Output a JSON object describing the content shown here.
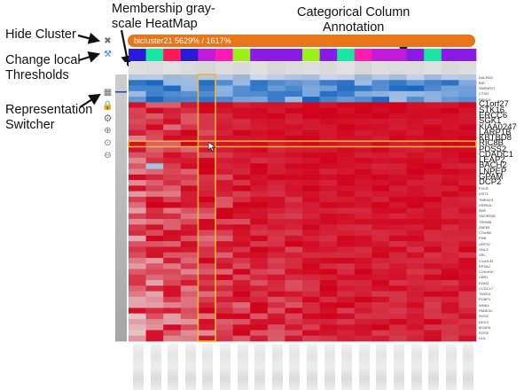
{
  "annotations": {
    "hide_cluster": "Hide Cluster",
    "change_thresholds_line1": "Change local",
    "change_thresholds_line2": "Thresholds",
    "representation_line1": "Representation",
    "representation_line2": "Switcher",
    "membership_line1": "Membership gray-",
    "membership_line2": "scale HeatMap",
    "categorical_line1": "Categorical Column",
    "categorical_line2": "Annotation"
  },
  "bicluster": {
    "label": "bicluster21 5629% / 1617%",
    "color": "#e8751a"
  },
  "toolbar_icons": [
    "close-icon",
    "threshold-icon",
    "table-icon",
    "lock-icon",
    "settings-icon",
    "zoom-in-icon",
    "zoom-reset-icon",
    "zoom-out-icon"
  ],
  "category_colors": [
    "#2a1ad9",
    "#19e6a0",
    "#ff1a5a",
    "#2a1ad9",
    "#c11ad9",
    "#ff1ab4",
    "#9bf01a",
    "#8a1ae6",
    "#8a1ae6",
    "#8a1ae6",
    "#9bf01a",
    "#8a1ae6",
    "#19e6a0",
    "#ff1ab4",
    "#c11ad9",
    "#c11ad9",
    "#8a1ae6",
    "#19e6a0",
    "#8a1ae6",
    "#8a1ae6"
  ],
  "membership_values": [
    0.85,
    0.8,
    0.9,
    0.78,
    0.7,
    0.82,
    0.75,
    0.88,
    0.72,
    0.8,
    0.86,
    0.76,
    0.9,
    0.7,
    0.83,
    0.78,
    0.8,
    0.88,
    0.74,
    0.81
  ],
  "highlight": {
    "column_index": 4,
    "row_label": "RIC8B"
  },
  "row_labels": [
    {
      "text": "DALRD3",
      "size": "small"
    },
    {
      "text": "BID",
      "size": "small"
    },
    {
      "text": "SNRNP27",
      "size": "small"
    },
    {
      "text": "CTSH",
      "size": "small"
    },
    {
      "text": "RBM19",
      "size": "small"
    },
    {
      "text": "C1orf27",
      "size": "big"
    },
    {
      "text": "STK16",
      "size": "big"
    },
    {
      "text": "ERCC6",
      "size": "big"
    },
    {
      "text": "SGK1",
      "size": "big"
    },
    {
      "text": "KIAA0247",
      "size": "big"
    },
    {
      "text": "LARP1B",
      "size": "big"
    },
    {
      "text": "KBTBD8",
      "size": "big"
    },
    {
      "text": "RIC8B",
      "size": "big"
    },
    {
      "text": "PDSS2",
      "size": "big"
    },
    {
      "text": "CDADC1",
      "size": "big"
    },
    {
      "text": "LEAP2",
      "size": "big"
    },
    {
      "text": "BACH2",
      "size": "big"
    },
    {
      "text": "LNPEP",
      "size": "big"
    },
    {
      "text": "GPAM",
      "size": "big"
    },
    {
      "text": "DCP2",
      "size": "big"
    },
    {
      "text": "FOLR",
      "size": "small"
    },
    {
      "text": "LRIT1",
      "size": "small"
    },
    {
      "text": "TMEM74",
      "size": "small"
    },
    {
      "text": "HSPA4L",
      "size": "small"
    },
    {
      "text": "SHE",
      "size": "small"
    },
    {
      "text": "SNORD50",
      "size": "small"
    },
    {
      "text": "TRIM38",
      "size": "small"
    },
    {
      "text": "ZNF83",
      "size": "small"
    },
    {
      "text": "C7orf50",
      "size": "small"
    },
    {
      "text": "PHB",
      "size": "small"
    },
    {
      "text": "USP32",
      "size": "small"
    },
    {
      "text": "GNL3",
      "size": "small"
    },
    {
      "text": "SRL",
      "size": "small"
    },
    {
      "text": "C1orf132",
      "size": "small"
    },
    {
      "text": "EPSA2",
      "size": "small"
    },
    {
      "text": "C19orf10",
      "size": "small"
    },
    {
      "text": "CBR1",
      "size": "small"
    },
    {
      "text": "KDM3",
      "size": "small"
    },
    {
      "text": "CCDC17",
      "size": "small"
    },
    {
      "text": "TM2D3",
      "size": "small"
    },
    {
      "text": "PCBP1",
      "size": "small"
    },
    {
      "text": "WNK4",
      "size": "small"
    },
    {
      "text": "PANK3C",
      "size": "small"
    },
    {
      "text": "RGS2",
      "size": "small"
    },
    {
      "text": "DDX3",
      "size": "small"
    },
    {
      "text": "MTAP6",
      "size": "small"
    },
    {
      "text": "RGS5",
      "size": "small"
    },
    {
      "text": "DLK",
      "size": "small"
    }
  ],
  "colors": {
    "heat_high": "#d0021b",
    "heat_low": "#e8e8e8",
    "heat_top": "#1a6fc0",
    "highlight_border": "#f2b630"
  }
}
